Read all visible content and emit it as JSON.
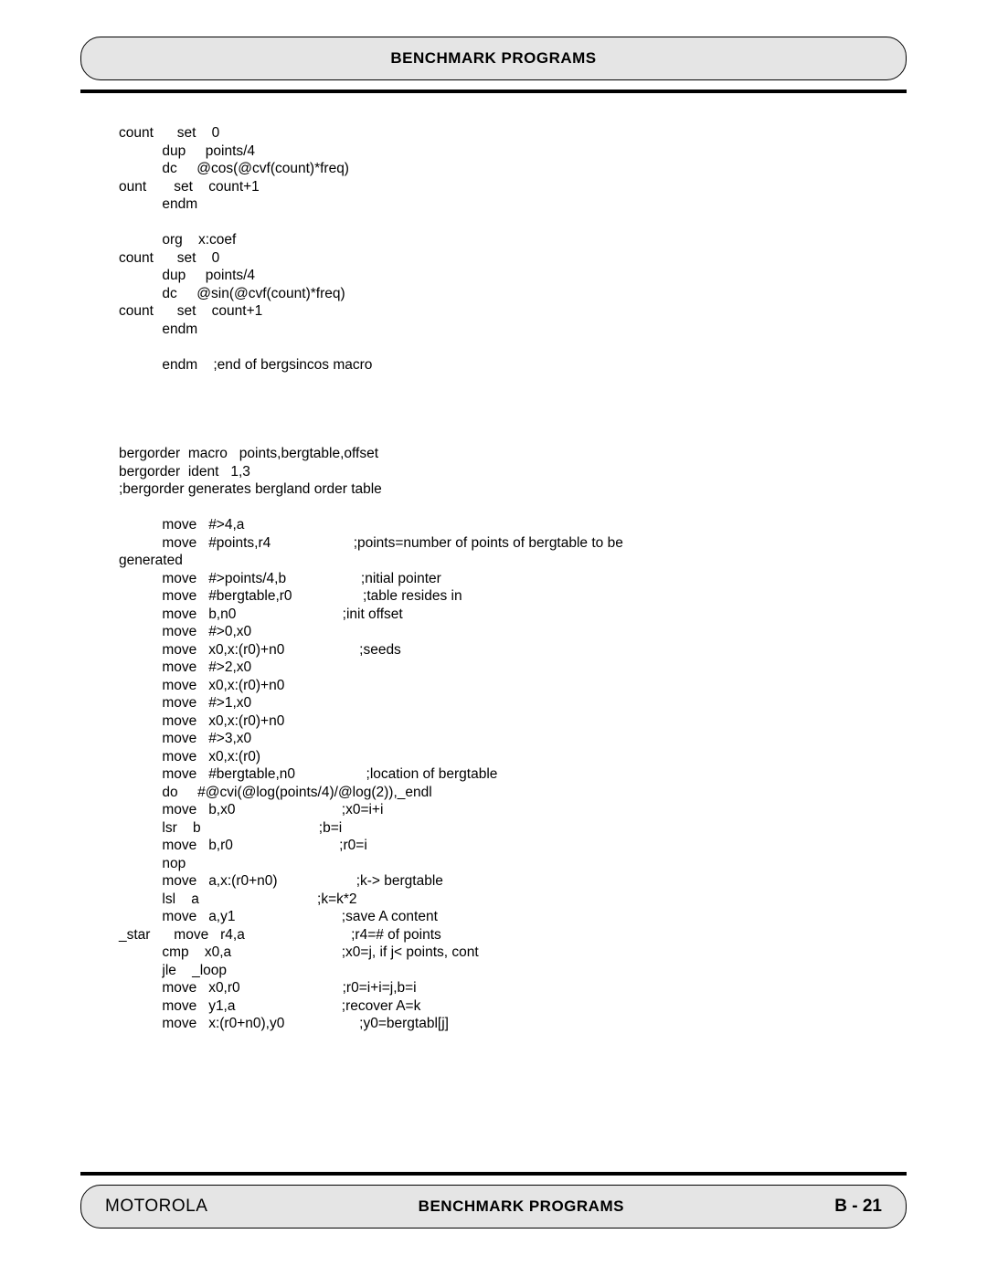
{
  "header": {
    "title": "BENCHMARK PROGRAMS"
  },
  "code": {
    "lines": [
      {
        "label": "count",
        "op": "set",
        "args": "0",
        "comment": ""
      },
      {
        "label": "",
        "op": "dup",
        "args": " points/4",
        "comment": ""
      },
      {
        "label": "",
        "op": "dc",
        "args": "@cos(@cvf(count)*freq)",
        "comment": ""
      },
      {
        "label": "ount",
        "op": "set",
        "args": "count+1",
        "comment": ""
      },
      {
        "label": "",
        "op": "endm",
        "args": "",
        "comment": ""
      },
      {
        "label": "",
        "op": "",
        "args": "",
        "comment": ""
      },
      {
        "label": "",
        "op": "org",
        "args": "x:coef",
        "comment": ""
      },
      {
        "label": "count",
        "op": "set",
        "args": "0",
        "comment": ""
      },
      {
        "label": "",
        "op": "dup",
        "args": " points/4",
        "comment": ""
      },
      {
        "label": "",
        "op": "dc",
        "args": "@sin(@cvf(count)*freq)",
        "comment": ""
      },
      {
        "label": "count",
        "op": "set",
        "args": "count+1",
        "comment": ""
      },
      {
        "label": "",
        "op": "endm",
        "args": "",
        "comment": ""
      },
      {
        "label": "",
        "op": "",
        "args": "",
        "comment": ""
      },
      {
        "label": "",
        "op": "endm",
        "args": " ;end of bergsincos macro",
        "comment": ""
      },
      {
        "label": "",
        "op": "",
        "args": "",
        "comment": ""
      },
      {
        "label": "",
        "op": "",
        "args": "",
        "comment": ""
      },
      {
        "label": "",
        "op": "",
        "args": "",
        "comment": ""
      },
      {
        "label": "",
        "op": "",
        "args": "",
        "comment": ""
      }
    ],
    "midblock": [
      "bergorder  macro   points,bergtable,offset",
      "bergorder  ident   1,3",
      ";bergorder generates bergland order table"
    ],
    "lines2": [
      {
        "label": "",
        "op": "",
        "args": "",
        "comment": ""
      },
      {
        "label": "",
        "op": "move",
        "args": "#>4,a",
        "comment": ""
      },
      {
        "label": "",
        "op": "move",
        "args": "#points,r4",
        "comment": ";points=number of points of bergtable to be "
      },
      {
        "label": "generated",
        "op": "",
        "args": "",
        "comment": ""
      },
      {
        "label": "",
        "op": "move",
        "args": "#>points/4,b",
        "comment": ";nitial pointer"
      },
      {
        "label": "",
        "op": "move",
        "args": "#bergtable,r0",
        "comment": ";table resides in "
      },
      {
        "label": "",
        "op": "move",
        "args": "b,n0",
        "comment": ";init offset"
      },
      {
        "label": "",
        "op": "move",
        "args": "#>0,x0",
        "comment": ""
      },
      {
        "label": "",
        "op": "move",
        "args": "x0,x:(r0)+n0",
        "comment": ";seeds"
      },
      {
        "label": "",
        "op": "move",
        "args": "#>2,x0",
        "comment": ""
      },
      {
        "label": "",
        "op": "move",
        "args": "x0,x:(r0)+n0",
        "comment": ""
      },
      {
        "label": "",
        "op": "move",
        "args": "#>1,x0",
        "comment": ""
      },
      {
        "label": "",
        "op": "move",
        "args": "x0,x:(r0)+n0",
        "comment": ""
      },
      {
        "label": "",
        "op": "move",
        "args": "#>3,x0",
        "comment": ""
      },
      {
        "label": "",
        "op": "move",
        "args": "x0,x:(r0)",
        "comment": ""
      },
      {
        "label": "",
        "op": "move",
        "args": "#bergtable,n0",
        "comment": ";location of bergtable "
      },
      {
        "label": "",
        "op": "do",
        "args": "#@cvi(@log(points/4)/@log(2)),_endl",
        "comment": ""
      },
      {
        "label": "",
        "op": "move",
        "args": "b,x0",
        "comment": ";x0=i+i"
      },
      {
        "label": "",
        "op": "lsr",
        "args": "b",
        "comment": ";b=i"
      },
      {
        "label": "",
        "op": "move",
        "args": "b,r0",
        "comment": ";r0=i"
      },
      {
        "label": "",
        "op": "nop",
        "args": "",
        "comment": ""
      },
      {
        "label": "",
        "op": "move",
        "args": "a,x:(r0+n0)",
        "comment": ";k-> bergtable"
      },
      {
        "label": "",
        "op": "lsl",
        "args": "a",
        "comment": ";k=k*2"
      },
      {
        "label": "",
        "op": "move",
        "args": "a,y1",
        "comment": ";save A content"
      },
      {
        "label": "_star",
        "op": "move",
        "args": "r4,a",
        "comment": ";r4=# of points"
      },
      {
        "label": "",
        "op": "cmp",
        "args": "x0,a",
        "comment": " ;x0=j, if j< points, cont"
      },
      {
        "label": "",
        "op": "jle",
        "args": "_loop",
        "comment": ""
      },
      {
        "label": "",
        "op": "move",
        "args": "x0,r0",
        "comment": ";r0=i+i=j,b=i"
      },
      {
        "label": "",
        "op": "move",
        "args": "y1,a",
        "comment": ";recover A=k"
      },
      {
        "label": "",
        "op": "move",
        "args": "x:(r0+n0),y0",
        "comment": ";y0=bergtabl[j]"
      }
    ]
  },
  "footer": {
    "left": "MOTOROLA",
    "center": "BENCHMARK PROGRAMS",
    "right": "B - 21"
  },
  "layout": {
    "col_label": 11,
    "col_op": 7,
    "col_args": 31
  }
}
